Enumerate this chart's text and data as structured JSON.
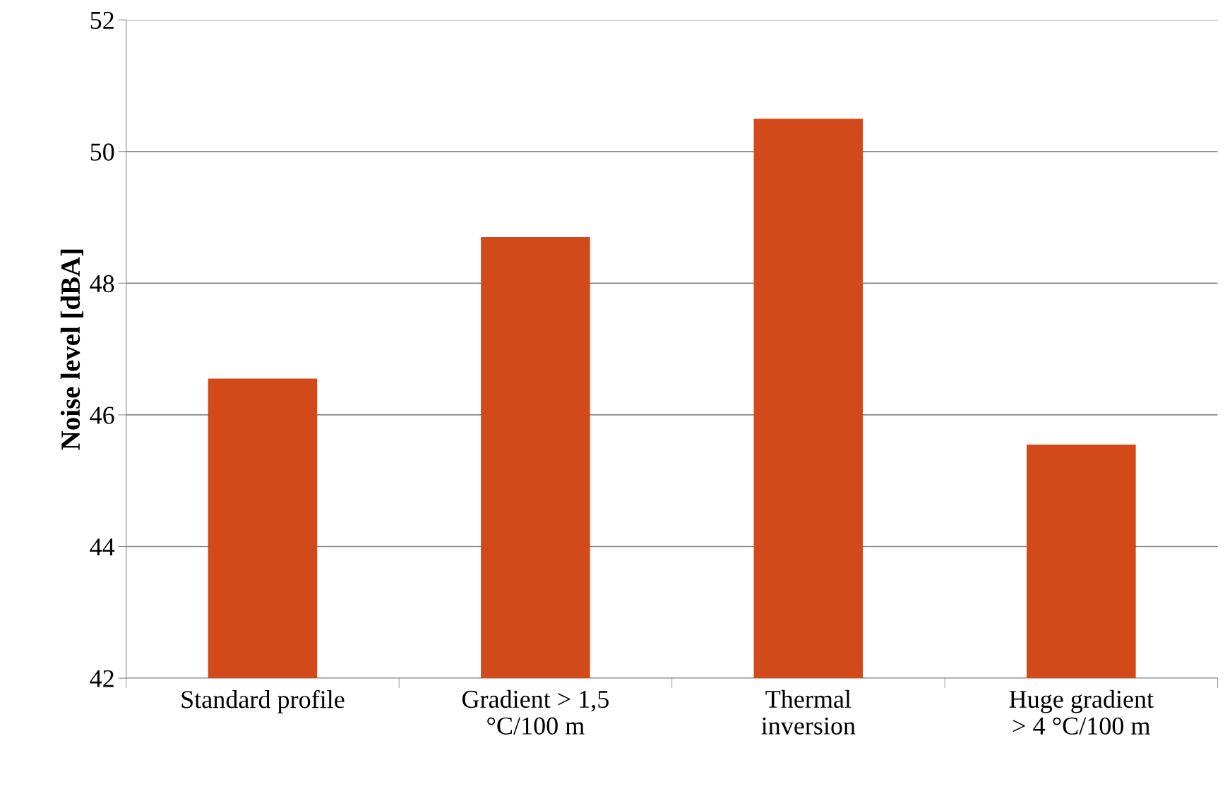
{
  "chart_data": {
    "type": "bar",
    "ylabel": "Noise level [dBA]",
    "categories": [
      "Standard profile",
      "Gradient > 1,5\n°C/100 m",
      "Thermal\ninversion",
      "Huge gradient\n> 4 °C/100 m"
    ],
    "values": [
      46.55,
      48.7,
      50.5,
      45.55
    ],
    "color": "#d24a1a",
    "ylim": [
      42,
      52
    ],
    "yticks": [
      42,
      44,
      46,
      48,
      50,
      52
    ],
    "grid": "y",
    "legend": false
  }
}
